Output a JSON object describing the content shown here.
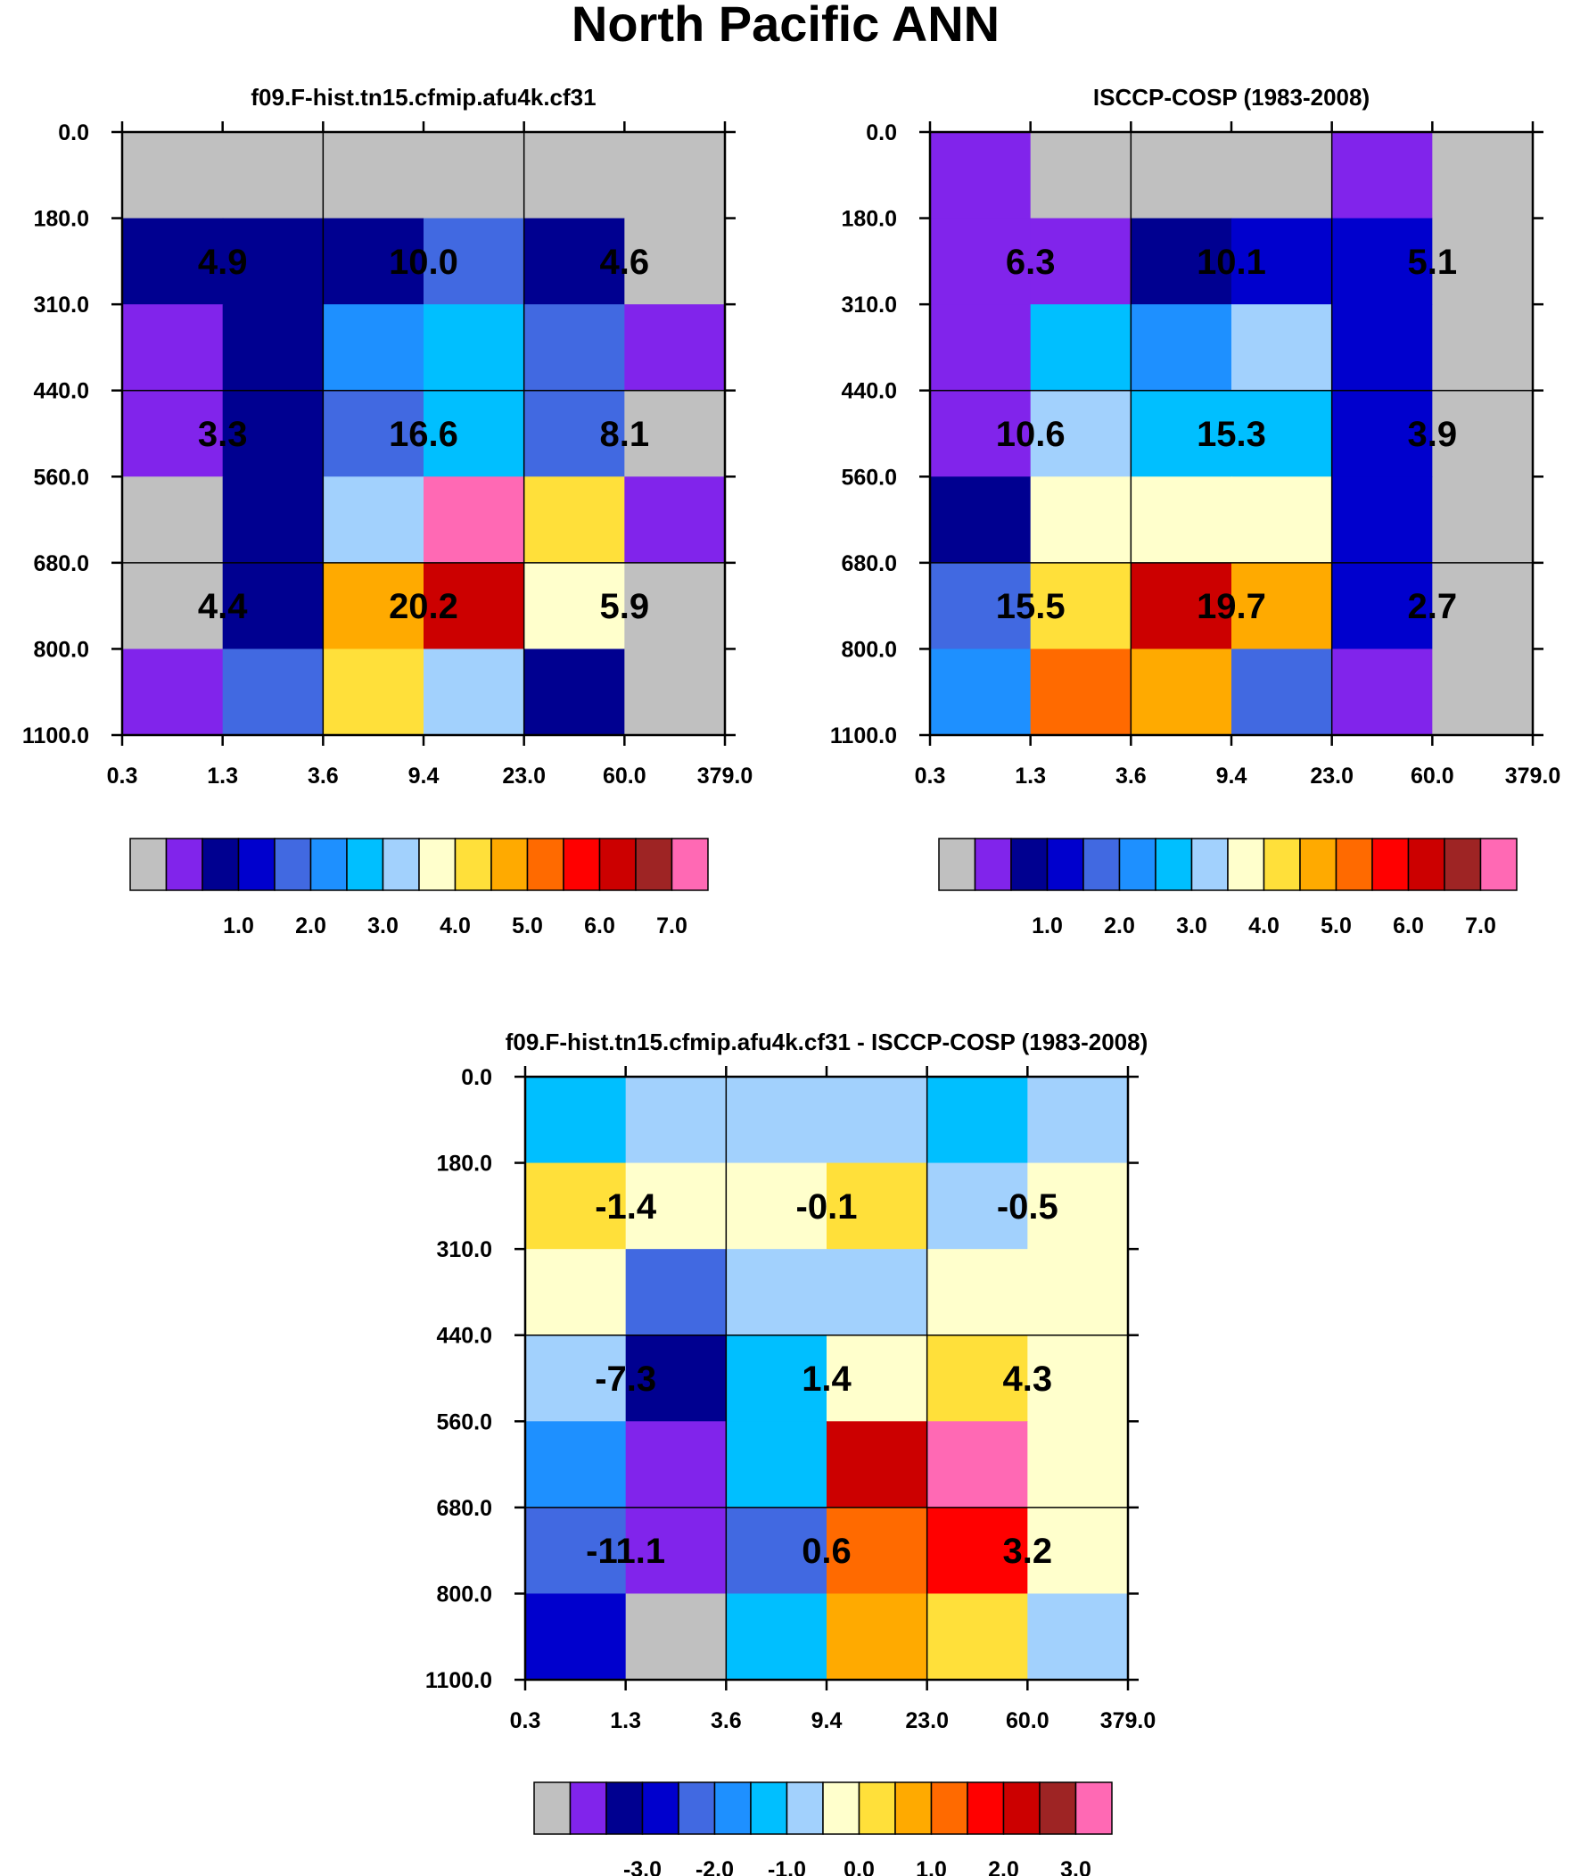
{
  "figure_title": "North Pacific ANN",
  "chart_data": [
    {
      "type": "heatmap",
      "title": "f09.F-hist.tn15.cfmip.afu4k.cf31",
      "x_ticks": [
        "0.3",
        "1.3",
        "3.6",
        "9.4",
        "23.0",
        "60.0",
        "379.0"
      ],
      "y_ticks": [
        "0.0",
        "180.0",
        "310.0",
        "440.0",
        "560.0",
        "680.0",
        "800.0",
        "1100.0"
      ],
      "cell_colors": [
        [
          0,
          0,
          0,
          0,
          0,
          0
        ],
        [
          2,
          2,
          2,
          4,
          2,
          0
        ],
        [
          1,
          2,
          5,
          6,
          4,
          1
        ],
        [
          1,
          2,
          4,
          6,
          4,
          0
        ],
        [
          0,
          2,
          7,
          15,
          9,
          1
        ],
        [
          0,
          2,
          10,
          13,
          8,
          0
        ],
        [
          1,
          4,
          9,
          7,
          2,
          0
        ]
      ],
      "block_labels": [
        [
          "4.9",
          "10.0",
          "4.6"
        ],
        [
          "3.3",
          "16.6",
          "8.1"
        ],
        [
          "4.4",
          "20.2",
          "5.9"
        ]
      ],
      "colorbar_labels": [
        "1.0",
        "2.0",
        "3.0",
        "4.0",
        "5.0",
        "6.0",
        "7.0"
      ]
    },
    {
      "type": "heatmap",
      "title": "ISCCP-COSP (1983-2008)",
      "x_ticks": [
        "0.3",
        "1.3",
        "3.6",
        "9.4",
        "23.0",
        "60.0",
        "379.0"
      ],
      "y_ticks": [
        "0.0",
        "180.0",
        "310.0",
        "440.0",
        "560.0",
        "680.0",
        "800.0",
        "1100.0"
      ],
      "cell_colors": [
        [
          1,
          0,
          0,
          0,
          1,
          0
        ],
        [
          1,
          1,
          2,
          3,
          3,
          0
        ],
        [
          1,
          6,
          5,
          7,
          3,
          0
        ],
        [
          1,
          7,
          6,
          6,
          3,
          0
        ],
        [
          2,
          8,
          8,
          8,
          3,
          0
        ],
        [
          4,
          9,
          13,
          10,
          3,
          0
        ],
        [
          5,
          11,
          10,
          4,
          1,
          0
        ]
      ],
      "block_labels": [
        [
          "6.3",
          "10.1",
          "5.1"
        ],
        [
          "10.6",
          "15.3",
          "3.9"
        ],
        [
          "15.5",
          "19.7",
          "2.7"
        ]
      ],
      "colorbar_labels": [
        "1.0",
        "2.0",
        "3.0",
        "4.0",
        "5.0",
        "6.0",
        "7.0"
      ]
    },
    {
      "type": "heatmap",
      "title": "f09.F-hist.tn15.cfmip.afu4k.cf31 - ISCCP-COSP (1983-2008)",
      "x_ticks": [
        "0.3",
        "1.3",
        "3.6",
        "9.4",
        "23.0",
        "60.0",
        "379.0"
      ],
      "y_ticks": [
        "0.0",
        "180.0",
        "310.0",
        "440.0",
        "560.0",
        "680.0",
        "800.0",
        "1100.0"
      ],
      "cell_colors": [
        [
          6,
          7,
          7,
          7,
          6,
          7
        ],
        [
          9,
          8,
          8,
          9,
          7,
          8
        ],
        [
          8,
          4,
          7,
          7,
          8,
          8
        ],
        [
          7,
          2,
          6,
          8,
          9,
          8
        ],
        [
          5,
          1,
          6,
          13,
          15,
          8
        ],
        [
          4,
          1,
          4,
          11,
          12,
          8
        ],
        [
          3,
          0,
          6,
          10,
          9,
          7
        ]
      ],
      "block_labels": [
        [
          "-1.4",
          "-0.1",
          "-0.5"
        ],
        [
          "-7.3",
          "1.4",
          "4.3"
        ],
        [
          "-11.1",
          "0.6",
          "3.2"
        ]
      ],
      "colorbar_labels": [
        "-3.0",
        "-2.0",
        "-1.0",
        "0.0",
        "1.0",
        "2.0",
        "3.0"
      ]
    }
  ],
  "palette": [
    "#c0c0c0",
    "#8124eb",
    "#000090",
    "#0000cd",
    "#4169e1",
    "#1e90ff",
    "#00bfff",
    "#a2d1fd",
    "#ffffcc",
    "#ffe03a",
    "#ffaa00",
    "#ff6a00",
    "#ff0000",
    "#cc0000",
    "#9e2424",
    "#ff69b4"
  ]
}
